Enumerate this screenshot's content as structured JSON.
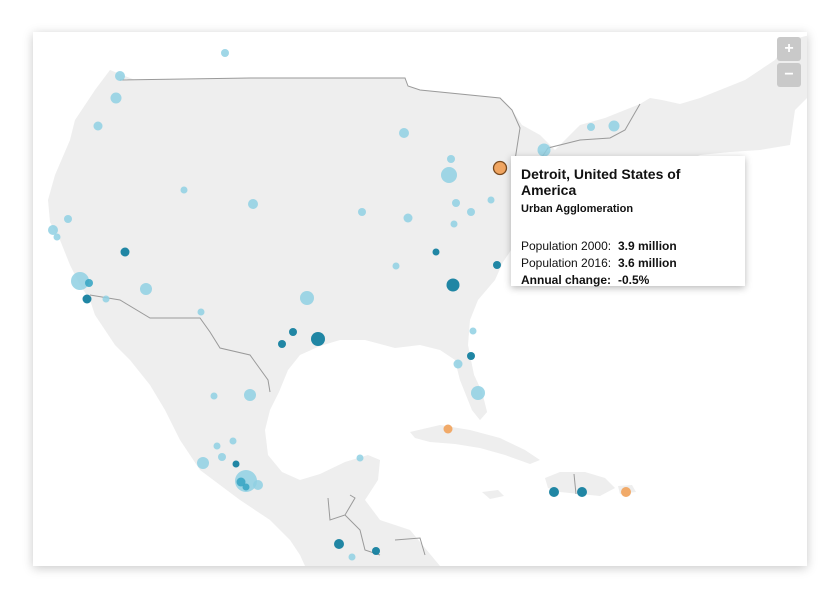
{
  "zoom": {
    "in_label": "+",
    "out_label": "−"
  },
  "colors": {
    "land": "#eeeeee",
    "border": "#9a9a9a",
    "light_dot": "#8fd0e3",
    "mid_dot": "#3aa6c4",
    "dark_dot": "#14809f",
    "orange_dot": "#f0a561"
  },
  "tooltip": {
    "title": "Detroit, United States of America",
    "subtitle": "Urban Agglomeration",
    "rows": [
      {
        "label": "Population 2000:",
        "value": "3.9 million"
      },
      {
        "label": "Population 2016:",
        "value": "3.6 million"
      },
      {
        "label": "Annual change:",
        "value": "-0.5%"
      }
    ]
  }
}
